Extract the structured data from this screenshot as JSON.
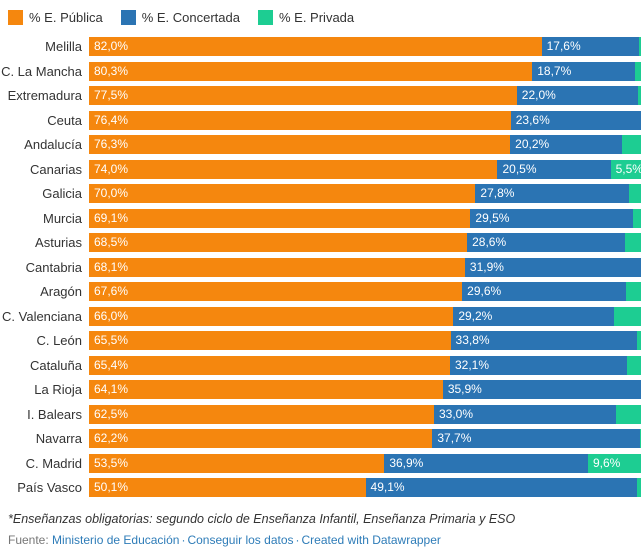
{
  "legend": {
    "items": [
      {
        "label": "% E. Pública",
        "color": "#f5870e"
      },
      {
        "label": "% E. Concertada",
        "color": "#2b74b3"
      },
      {
        "label": "% E. Privada",
        "color": "#1dcd92"
      }
    ]
  },
  "chart_data": {
    "type": "bar",
    "stacked": true,
    "orientation": "horizontal",
    "xlim": [
      0,
      100
    ],
    "grid": false,
    "legend_position": "top",
    "series_names": [
      "% E. Pública",
      "% E. Concertada",
      "% E. Privada"
    ],
    "colors": {
      "publica": "#f5870e",
      "concertada": "#2b74b3",
      "privada": "#1dcd92"
    },
    "categories": [
      "Melilla",
      "C. La Mancha",
      "Extremadura",
      "Ceuta",
      "Andalucía",
      "Canarias",
      "Galicia",
      "Murcia",
      "Asturias",
      "Cantabria",
      "Aragón",
      "C. Valenciana",
      "C. León",
      "Cataluña",
      "La Rioja",
      "I. Balears",
      "Navarra",
      "C. Madrid",
      "País Vasco"
    ],
    "rows": [
      {
        "region": "Melilla",
        "publica": 82.0,
        "concertada": 17.6,
        "privada": 0.4,
        "publica_label": "82,0%",
        "concertada_label": "17,6%",
        "privada_label": ""
      },
      {
        "region": "C. La Mancha",
        "publica": 80.3,
        "concertada": 18.7,
        "privada": 1.0,
        "publica_label": "80,3%",
        "concertada_label": "18,7%",
        "privada_label": ""
      },
      {
        "region": "Extremadura",
        "publica": 77.5,
        "concertada": 22.0,
        "privada": 0.5,
        "publica_label": "77,5%",
        "concertada_label": "22,0%",
        "privada_label": ""
      },
      {
        "region": "Ceuta",
        "publica": 76.4,
        "concertada": 23.6,
        "privada": 0.0,
        "publica_label": "76,4%",
        "concertada_label": "23,6%",
        "privada_label": ""
      },
      {
        "region": "Andalucía",
        "publica": 76.3,
        "concertada": 20.2,
        "privada": 3.5,
        "publica_label": "76,3%",
        "concertada_label": "20,2%",
        "privada_label": ""
      },
      {
        "region": "Canarias",
        "publica": 74.0,
        "concertada": 20.5,
        "privada": 5.5,
        "publica_label": "74,0%",
        "concertada_label": "20,5%",
        "privada_label": "5,5%"
      },
      {
        "region": "Galicia",
        "publica": 70.0,
        "concertada": 27.8,
        "privada": 2.2,
        "publica_label": "70,0%",
        "concertada_label": "27,8%",
        "privada_label": ""
      },
      {
        "region": "Murcia",
        "publica": 69.1,
        "concertada": 29.5,
        "privada": 1.4,
        "publica_label": "69,1%",
        "concertada_label": "29,5%",
        "privada_label": ""
      },
      {
        "region": "Asturias",
        "publica": 68.5,
        "concertada": 28.6,
        "privada": 2.9,
        "publica_label": "68,5%",
        "concertada_label": "28,6%",
        "privada_label": ""
      },
      {
        "region": "Cantabria",
        "publica": 68.1,
        "concertada": 31.9,
        "privada": 0.0,
        "publica_label": "68,1%",
        "concertada_label": "31,9%",
        "privada_label": ""
      },
      {
        "region": "Aragón",
        "publica": 67.6,
        "concertada": 29.6,
        "privada": 2.8,
        "publica_label": "67,6%",
        "concertada_label": "29,6%",
        "privada_label": ""
      },
      {
        "region": "C. Valenciana",
        "publica": 66.0,
        "concertada": 29.2,
        "privada": 4.8,
        "publica_label": "66,0%",
        "concertada_label": "29,2%",
        "privada_label": ""
      },
      {
        "region": "C. León",
        "publica": 65.5,
        "concertada": 33.8,
        "privada": 0.7,
        "publica_label": "65,5%",
        "concertada_label": "33,8%",
        "privada_label": ""
      },
      {
        "region": "Cataluña",
        "publica": 65.4,
        "concertada": 32.1,
        "privada": 2.5,
        "publica_label": "65,4%",
        "concertada_label": "32,1%",
        "privada_label": ""
      },
      {
        "region": "La Rioja",
        "publica": 64.1,
        "concertada": 35.9,
        "privada": 0.0,
        "publica_label": "64,1%",
        "concertada_label": "35,9%",
        "privada_label": ""
      },
      {
        "region": "I. Balears",
        "publica": 62.5,
        "concertada": 33.0,
        "privada": 4.5,
        "publica_label": "62,5%",
        "concertada_label": "33,0%",
        "privada_label": ""
      },
      {
        "region": "Navarra",
        "publica": 62.2,
        "concertada": 37.7,
        "privada": 0.1,
        "publica_label": "62,2%",
        "concertada_label": "37,7%",
        "privada_label": ""
      },
      {
        "region": "C. Madrid",
        "publica": 53.5,
        "concertada": 36.9,
        "privada": 9.6,
        "publica_label": "53,5%",
        "concertada_label": "36,9%",
        "privada_label": "9,6%"
      },
      {
        "region": "País Vasco",
        "publica": 50.1,
        "concertada": 49.1,
        "privada": 0.8,
        "publica_label": "50,1%",
        "concertada_label": "49,1%",
        "privada_label": ""
      }
    ]
  },
  "footer": {
    "footnote": "*Enseñanzas obligatorias: segundo ciclo de Enseñanza Infantil, Enseñanza Primaria y ESO",
    "source_prefix": "Fuente: ",
    "separator": "·",
    "links": [
      {
        "label": "Ministerio de Educación"
      },
      {
        "label": "Conseguir los datos"
      },
      {
        "label": "Created with Datawrapper"
      }
    ]
  }
}
